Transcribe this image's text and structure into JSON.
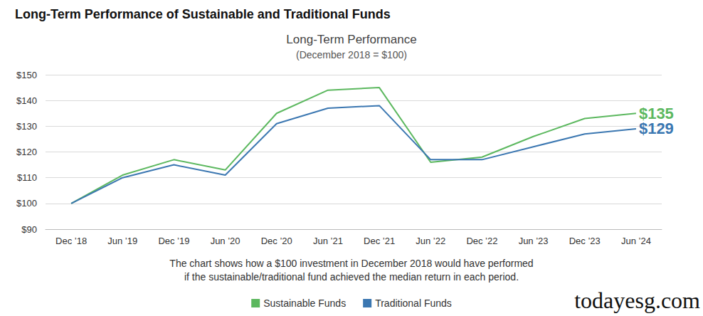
{
  "chart_data": {
    "type": "line",
    "header": "Long-Term Performance of Sustainable and Traditional Funds",
    "title": "Long-Term Performance",
    "subtitle": "(December 2018 = $100)",
    "categories": [
      "Dec ’18",
      "Jun ’19",
      "Dec ’19",
      "Jun ’20",
      "Dec ’20",
      "Jun ’21",
      "Dec ’21",
      "Jun ’22",
      "Dec ’22",
      "Jun ’23",
      "Dec ’23",
      "Jun ’24"
    ],
    "series": [
      {
        "name": "Sustainable Funds",
        "color": "#5cb85f",
        "values": [
          100,
          111,
          117,
          113,
          135,
          144,
          145,
          116,
          118,
          126,
          133,
          135
        ]
      },
      {
        "name": "Traditional Funds",
        "color": "#3b77b1",
        "values": [
          100,
          110,
          115,
          111,
          131,
          137,
          138,
          117,
          117,
          122,
          127,
          129
        ]
      }
    ],
    "ylim": [
      90,
      150
    ],
    "yticks": [
      {
        "value": 90,
        "label": "$90"
      },
      {
        "value": 100,
        "label": "$100"
      },
      {
        "value": 110,
        "label": "$110"
      },
      {
        "value": 120,
        "label": "$120"
      },
      {
        "value": 130,
        "label": "$130"
      },
      {
        "value": 140,
        "label": "$140"
      },
      {
        "value": 150,
        "label": "$150"
      }
    ],
    "annotations": [
      {
        "text": "$135",
        "x": "Jun ’24",
        "y": 135,
        "series": "Sustainable Funds"
      },
      {
        "text": "$129",
        "x": "Jun ’24",
        "y": 129,
        "series": "Traditional Funds"
      }
    ],
    "caption": [
      "The chart shows how a $100 investment in December 2018 would have performed",
      "if the sustainable/traditional fund achieved the median return in each period."
    ],
    "watermark": "todayesg.com",
    "grid": true,
    "legend": "bottom"
  }
}
